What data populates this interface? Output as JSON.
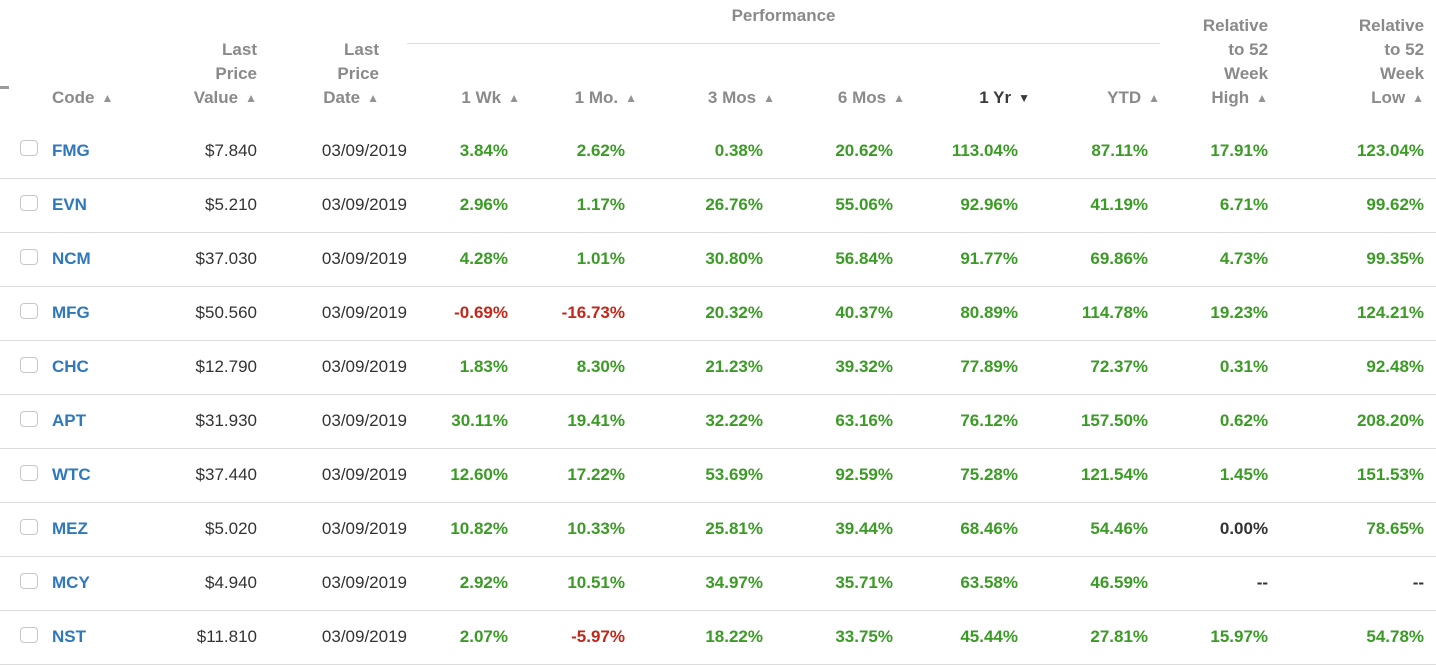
{
  "colors": {
    "positive": "#3b9b26",
    "negative": "#c2271a",
    "neutral": "#333333",
    "code_link": "#2e78bb",
    "header_text": "#8a8a8a",
    "active_sort_text": "#3a3a3a",
    "row_divider": "#dcdcdc"
  },
  "icons": {
    "sort_asc": "▲",
    "sort_desc": "▼"
  },
  "table": {
    "group_header": "Performance",
    "columns": {
      "code": {
        "label": "Code",
        "sort": "asc",
        "active": false
      },
      "last_price_value": {
        "label": "Last\nPrice\nValue",
        "sort": "asc",
        "active": false
      },
      "last_price_date": {
        "label": "Last\nPrice\nDate",
        "sort": "asc",
        "active": false
      },
      "wk1": {
        "label": "1 Wk",
        "sort": "asc",
        "active": false
      },
      "mo1": {
        "label": "1 Mo.",
        "sort": "asc",
        "active": false
      },
      "mos3": {
        "label": "3 Mos",
        "sort": "asc",
        "active": false
      },
      "mos6": {
        "label": "6 Mos",
        "sort": "asc",
        "active": false
      },
      "yr1": {
        "label": "1 Yr",
        "sort": "desc",
        "active": true
      },
      "ytd": {
        "label": "YTD",
        "sort": "asc",
        "active": false
      },
      "rel_high": {
        "label": "Relative\nto 52\nWeek\nHigh",
        "sort": "asc",
        "active": false
      },
      "rel_low": {
        "label": "Relative\nto 52\nWeek\nLow",
        "sort": "asc",
        "active": false
      }
    },
    "rows": [
      [
        "FMG",
        "$7.840",
        "03/09/2019",
        "3.84%",
        "2.62%",
        "0.38%",
        "20.62%",
        "113.04%",
        "87.11%",
        "17.91%",
        "123.04%"
      ],
      [
        "EVN",
        "$5.210",
        "03/09/2019",
        "2.96%",
        "1.17%",
        "26.76%",
        "55.06%",
        "92.96%",
        "41.19%",
        "6.71%",
        "99.62%"
      ],
      [
        "NCM",
        "$37.030",
        "03/09/2019",
        "4.28%",
        "1.01%",
        "30.80%",
        "56.84%",
        "91.77%",
        "69.86%",
        "4.73%",
        "99.35%"
      ],
      [
        "MFG",
        "$50.560",
        "03/09/2019",
        "-0.69%",
        "-16.73%",
        "20.32%",
        "40.37%",
        "80.89%",
        "114.78%",
        "19.23%",
        "124.21%"
      ],
      [
        "CHC",
        "$12.790",
        "03/09/2019",
        "1.83%",
        "8.30%",
        "21.23%",
        "39.32%",
        "77.89%",
        "72.37%",
        "0.31%",
        "92.48%"
      ],
      [
        "APT",
        "$31.930",
        "03/09/2019",
        "30.11%",
        "19.41%",
        "32.22%",
        "63.16%",
        "76.12%",
        "157.50%",
        "0.62%",
        "208.20%"
      ],
      [
        "WTC",
        "$37.440",
        "03/09/2019",
        "12.60%",
        "17.22%",
        "53.69%",
        "92.59%",
        "75.28%",
        "121.54%",
        "1.45%",
        "151.53%"
      ],
      [
        "MEZ",
        "$5.020",
        "03/09/2019",
        "10.82%",
        "10.33%",
        "25.81%",
        "39.44%",
        "68.46%",
        "54.46%",
        "0.00%",
        "78.65%"
      ],
      [
        "MCY",
        "$4.940",
        "03/09/2019",
        "2.92%",
        "10.51%",
        "34.97%",
        "35.71%",
        "63.58%",
        "46.59%",
        "--",
        "--"
      ],
      [
        "NST",
        "$11.810",
        "03/09/2019",
        "2.07%",
        "-5.97%",
        "18.22%",
        "33.75%",
        "45.44%",
        "27.81%",
        "15.97%",
        "54.78%"
      ]
    ]
  }
}
